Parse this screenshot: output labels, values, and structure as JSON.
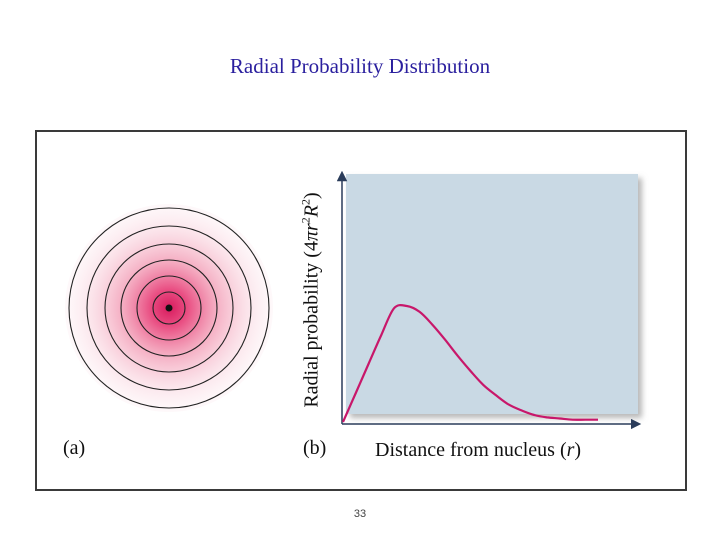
{
  "slide": {
    "title": "Radial Probability Distribution",
    "page_number": "33"
  },
  "figure": {
    "panel_a_label": "(a)",
    "panel_b_label": "(b)",
    "y_label_prefix": "Radial probability (4",
    "y_label_pi": "π",
    "y_label_r": "r",
    "y_label_exp1": "2",
    "y_label_R": "R",
    "y_label_exp2": "2",
    "y_label_suffix": ")",
    "x_label_text": "Distance from nucleus (",
    "x_label_var": "r",
    "x_label_close": ")",
    "colors": {
      "plot_background": "#c9d9e4",
      "curve": "#c8176a",
      "electron_cloud_center": "#d81b5e",
      "orbit_rings": "#222222",
      "title_text": "#2a1f9e"
    }
  },
  "chart_data": {
    "type": "line",
    "title": "",
    "xlabel": "Distance from nucleus (r)",
    "ylabel": "Radial probability (4πr²R²)",
    "series": [
      {
        "x": [
          0.0,
          0.05,
          0.1,
          0.15,
          0.2,
          0.25,
          0.3,
          0.35,
          0.4,
          0.45,
          0.5,
          0.55,
          0.6,
          0.65,
          0.7,
          0.75,
          0.8,
          0.85,
          0.9,
          0.95,
          1.0
        ],
        "y": [
          0.0,
          0.25,
          0.5,
          0.75,
          0.98,
          1.0,
          0.95,
          0.84,
          0.71,
          0.57,
          0.44,
          0.32,
          0.23,
          0.15,
          0.1,
          0.06,
          0.04,
          0.03,
          0.02,
          0.02,
          0.02
        ]
      }
    ],
    "grid": false,
    "ticks": false
  }
}
